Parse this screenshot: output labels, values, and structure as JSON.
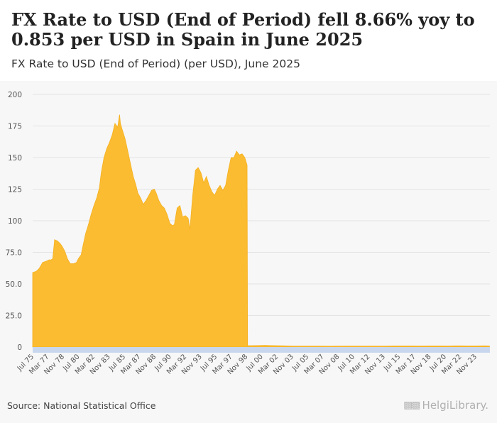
{
  "header": {
    "title": "FX Rate to USD (End of Period) fell 8.66% yoy to 0.853 per USD in Spain in June 2025",
    "subtitle": "FX Rate to USD (End of Period) (per USD), June 2025"
  },
  "footer": {
    "source": "Source: National Statistical Office",
    "brand": "HelgiLibrary."
  },
  "colors": {
    "area_fill": "#fbbc32",
    "area_stroke": "#f5b01e",
    "axis_band": "#c9d7ee",
    "grid": "#e3e3e3",
    "background": "#f7f7f7"
  },
  "chart_data": {
    "type": "area",
    "title": "FX Rate to USD (End of Period) (per USD), June 2025",
    "ylabel": "",
    "xlabel": "",
    "ylim": [
      0,
      200
    ],
    "yticks": [
      0,
      25.0,
      50.0,
      75.0,
      100,
      125,
      150,
      175,
      200
    ],
    "ytick_labels": [
      "0",
      "25.0",
      "50.0",
      "75.0",
      "100",
      "125",
      "150",
      "175",
      "200"
    ],
    "xlim": [
      1975.5,
      2025.5
    ],
    "xtick_labels": [
      "Jul 75",
      "Mar 77",
      "Nov 78",
      "Jul 80",
      "Mar 82",
      "Nov 83",
      "Jul 85",
      "Mar 87",
      "Nov 88",
      "Jul 90",
      "Mar 92",
      "Nov 93",
      "Jul 95",
      "Mar 97",
      "Nov 98",
      "Jul 00",
      "Mar 02",
      "Nov 03",
      "Jul 05",
      "Mar 07",
      "Nov 08",
      "Jul 10",
      "Mar 12",
      "Nov 13",
      "Jul 15",
      "Mar 17",
      "Nov 18",
      "Jul 20",
      "Mar 22",
      "Nov 23"
    ],
    "grid": true,
    "legend": "none",
    "series": [
      {
        "name": "FX Rate to USD (End of Period)",
        "x": [
          1975.5,
          1975.9,
          1976.2,
          1976.6,
          1977.0,
          1977.3,
          1977.5,
          1977.7,
          1977.9,
          1978.2,
          1978.5,
          1978.7,
          1979.0,
          1979.3,
          1979.6,
          1980.0,
          1980.3,
          1980.5,
          1980.8,
          1981.0,
          1981.3,
          1981.6,
          1981.9,
          1982.2,
          1982.5,
          1982.8,
          1983.0,
          1983.3,
          1983.6,
          1983.9,
          1984.2,
          1984.5,
          1984.8,
          1985.0,
          1985.1,
          1985.3,
          1985.6,
          1985.9,
          1986.2,
          1986.5,
          1986.8,
          1987.0,
          1987.3,
          1987.6,
          1987.9,
          1988.2,
          1988.5,
          1988.8,
          1989.0,
          1989.3,
          1989.6,
          1989.9,
          1990.2,
          1990.5,
          1990.8,
          1991.0,
          1991.3,
          1991.6,
          1991.9,
          1992.2,
          1992.5,
          1992.7,
          1993.0,
          1993.3,
          1993.6,
          1993.9,
          1994.2,
          1994.5,
          1994.8,
          1995.1,
          1995.4,
          1995.7,
          1996.0,
          1996.3,
          1996.6,
          1996.9,
          1997.2,
          1997.5,
          1997.8,
          1998.1,
          1998.4,
          1998.7,
          1998.95,
          1999.0,
          1999.5,
          2000.0,
          2000.5,
          2001.0,
          2001.5,
          2002.0,
          2002.5,
          2003.0,
          2004.0,
          2005.0,
          2006.0,
          2007.0,
          2008.0,
          2009.0,
          2010.0,
          2011.0,
          2012.0,
          2013.0,
          2014.0,
          2015.0,
          2016.0,
          2017.0,
          2018.0,
          2019.0,
          2020.0,
          2021.0,
          2022.0,
          2023.0,
          2024.0,
          2025.0,
          2025.45
        ],
        "values": [
          59,
          60,
          62,
          67,
          68,
          69,
          69,
          70,
          85,
          84,
          82,
          80,
          76,
          70,
          66,
          66,
          67,
          70,
          73,
          80,
          90,
          97,
          105,
          112,
          118,
          126,
          138,
          150,
          157,
          162,
          168,
          177,
          174,
          184,
          177,
          172,
          165,
          155,
          145,
          135,
          128,
          122,
          118,
          113,
          116,
          120,
          124,
          125,
          122,
          116,
          112,
          110,
          105,
          98,
          96,
          97,
          110,
          112,
          103,
          104,
          102,
          93,
          120,
          140,
          142,
          138,
          130,
          135,
          128,
          123,
          120,
          125,
          128,
          124,
          128,
          140,
          150,
          150,
          155,
          152,
          153,
          150,
          144,
          1.1,
          1.15,
          1.2,
          1.25,
          1.3,
          1.2,
          1.1,
          1.0,
          0.95,
          0.8,
          0.78,
          0.8,
          0.76,
          0.68,
          0.72,
          0.75,
          0.72,
          0.78,
          0.75,
          0.8,
          0.92,
          0.9,
          0.89,
          0.83,
          0.9,
          0.88,
          0.82,
          0.95,
          0.92,
          0.92,
          0.93,
          0.853
        ]
      }
    ]
  }
}
